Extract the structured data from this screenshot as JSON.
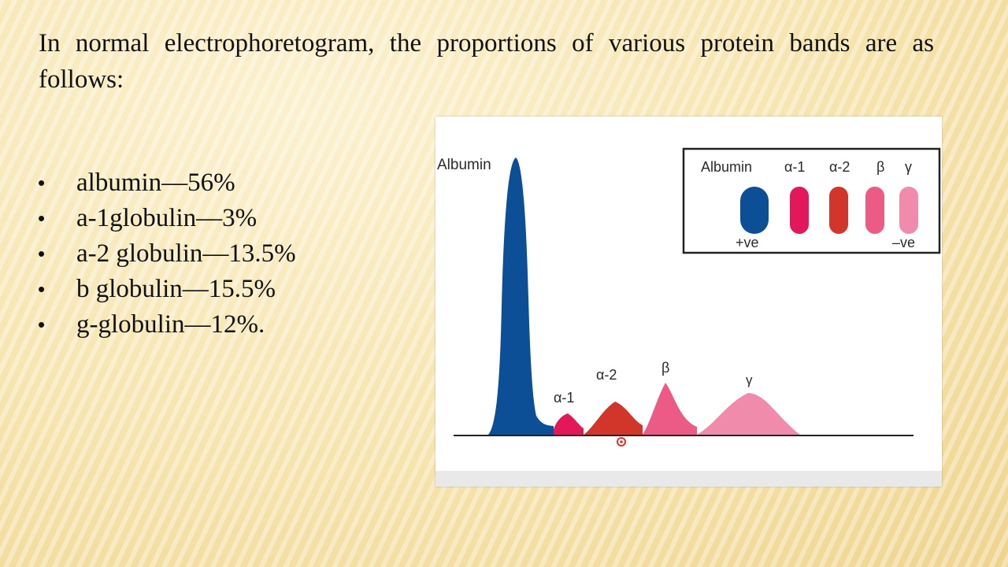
{
  "heading": "In normal electrophoretogram, the proportions of various protein bands are as follows:",
  "bullets": [
    {
      "text": "albumin—56%"
    },
    {
      "text": "a-1globulin—3%"
    },
    {
      "text": "a-2 globulin—13.5%"
    },
    {
      "text": "b globulin—15.5%"
    },
    {
      "text": "g-globulin—12%."
    }
  ],
  "figure": {
    "peak_labels": {
      "albumin": "Albumin",
      "alpha1": "α-1",
      "alpha2": "α-2",
      "beta": "β",
      "gamma": "γ"
    },
    "legend": {
      "labels": [
        "Albumin",
        "α-1",
        "α-2",
        "β",
        "γ"
      ],
      "positive": "+ve",
      "negative": "–ve"
    },
    "colors": {
      "albumin": "#0d4f96",
      "alpha1": "#e2185a",
      "alpha2": "#d2352a",
      "beta": "#ec5a86",
      "gamma": "#f08bab"
    }
  }
}
